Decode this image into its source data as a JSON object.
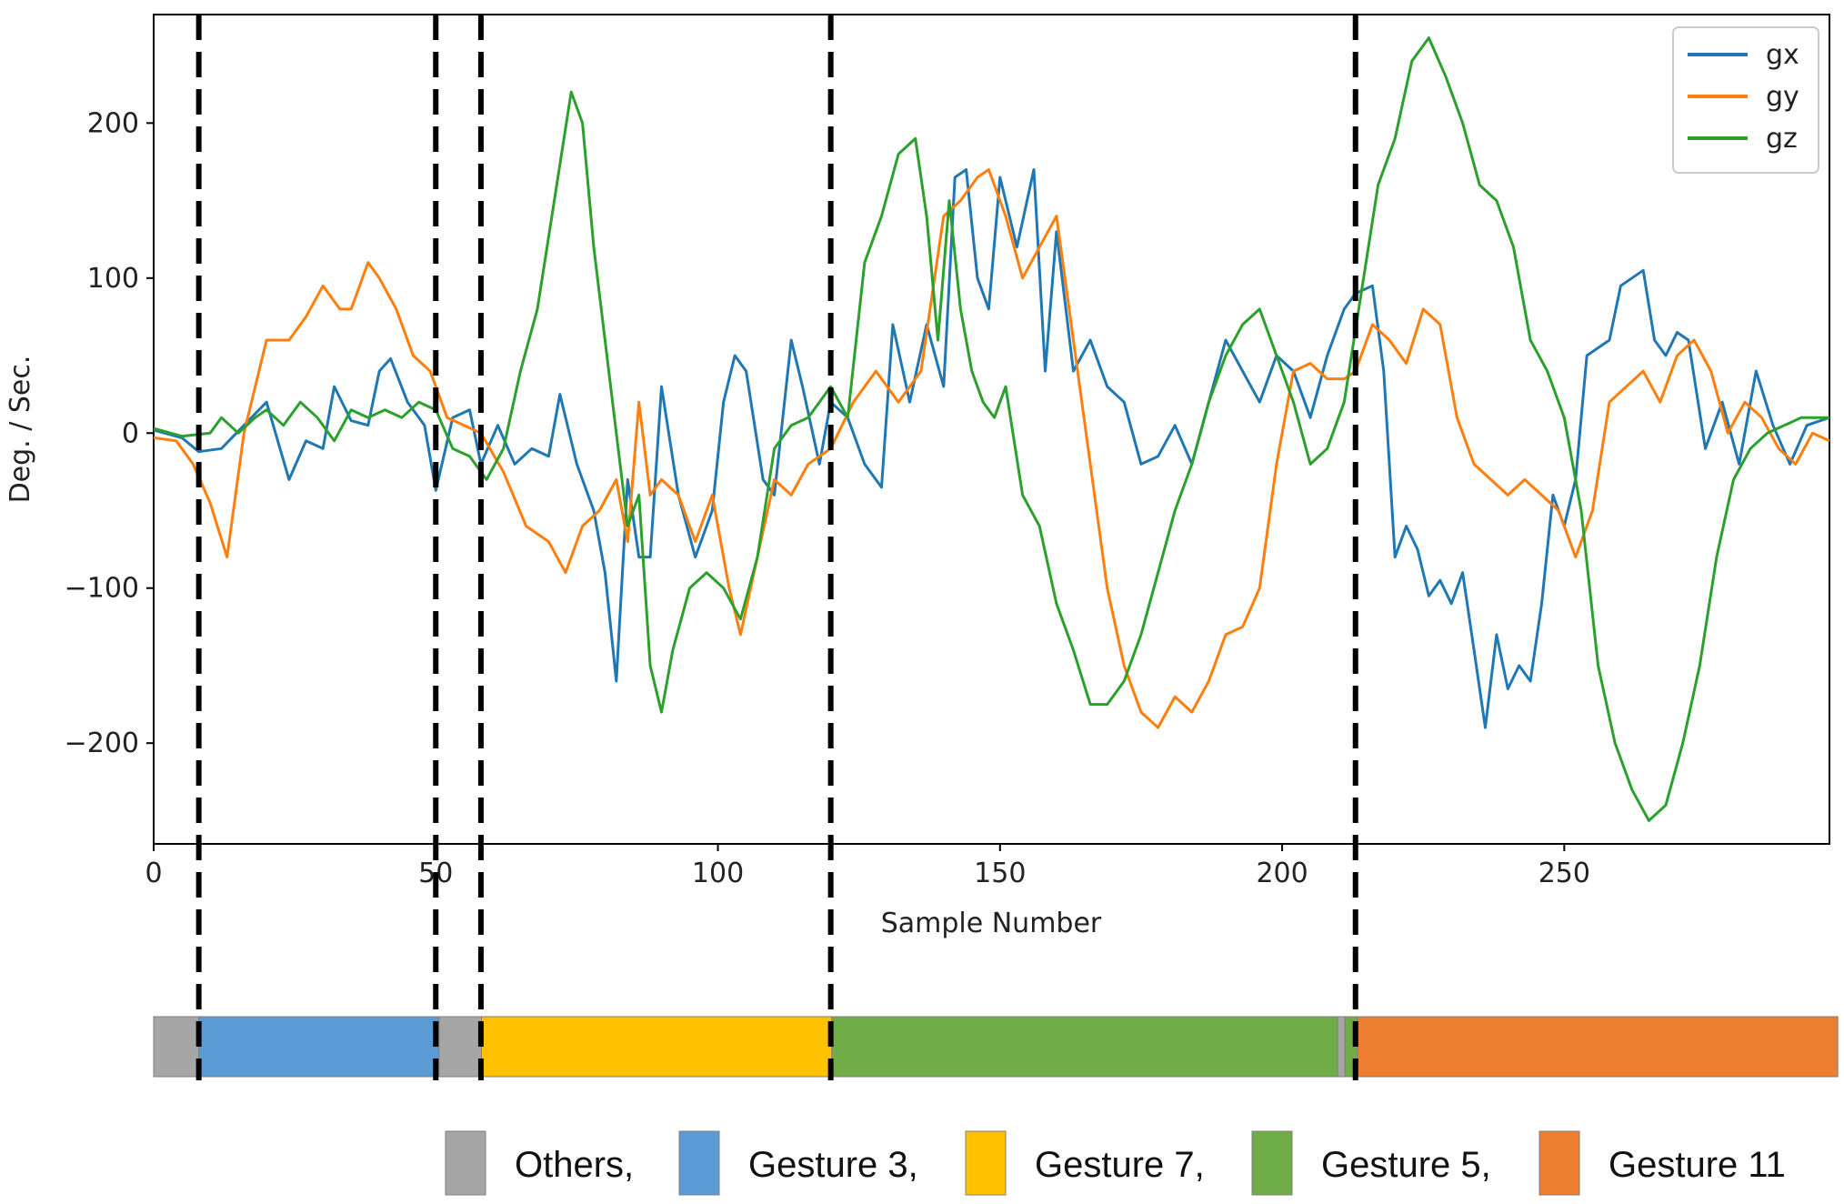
{
  "chart_data": {
    "type": "line",
    "xlabel": "Sample Number",
    "ylabel": "Deg. / Sec.",
    "xlim": [
      0,
      297
    ],
    "ylim": [
      -265,
      270
    ],
    "xticks": [
      0,
      50,
      100,
      150,
      200,
      250
    ],
    "xtick_labels": [
      "0",
      "50",
      "100",
      "150",
      "200",
      "250"
    ],
    "yticks": [
      200,
      100,
      0,
      -100,
      -200
    ],
    "ytick_labels": [
      "200",
      "100",
      "0",
      "−100",
      "−200"
    ],
    "legend_position": "top-right",
    "boundaries": [
      8,
      50,
      58,
      120,
      213
    ],
    "series": [
      {
        "name": "gx",
        "color": "#1f77b4",
        "x": [
          0,
          5,
          8,
          12,
          16,
          20,
          24,
          27,
          30,
          32,
          35,
          38,
          40,
          42,
          45,
          48,
          50,
          53,
          56,
          58,
          61,
          64,
          67,
          70,
          72,
          75,
          78,
          80,
          82,
          84,
          86,
          88,
          90,
          93,
          96,
          99,
          101,
          103,
          105,
          108,
          110,
          113,
          115,
          118,
          120,
          123,
          126,
          129,
          131,
          134,
          137,
          140,
          142,
          144,
          146,
          148,
          150,
          153,
          156,
          158,
          160,
          163,
          166,
          169,
          172,
          175,
          178,
          181,
          184,
          187,
          190,
          193,
          196,
          199,
          202,
          205,
          208,
          211,
          213,
          216,
          218,
          220,
          222,
          224,
          226,
          228,
          230,
          232,
          234,
          236,
          238,
          240,
          242,
          244,
          246,
          248,
          250,
          252,
          254,
          256,
          258,
          260,
          262,
          264,
          266,
          268,
          270,
          272,
          275,
          278,
          281,
          284,
          287,
          290,
          293,
          297
        ],
        "y": [
          2,
          -3,
          -12,
          -10,
          5,
          20,
          -30,
          -5,
          -10,
          30,
          8,
          5,
          40,
          48,
          20,
          5,
          -37,
          10,
          15,
          -20,
          5,
          -20,
          -10,
          -15,
          25,
          -20,
          -50,
          -90,
          -160,
          -30,
          -80,
          -80,
          30,
          -40,
          -80,
          -50,
          20,
          50,
          40,
          -30,
          -40,
          60,
          30,
          -20,
          20,
          10,
          -20,
          -35,
          70,
          20,
          70,
          30,
          165,
          170,
          100,
          80,
          165,
          120,
          170,
          40,
          130,
          40,
          60,
          30,
          20,
          -20,
          -15,
          5,
          -20,
          20,
          60,
          40,
          20,
          50,
          40,
          10,
          50,
          80,
          90,
          95,
          40,
          -80,
          -60,
          -75,
          -105,
          -95,
          -110,
          -90,
          -140,
          -190,
          -130,
          -165,
          -150,
          -160,
          -110,
          -40,
          -60,
          -30,
          50,
          55,
          60,
          95,
          100,
          105,
          60,
          50,
          65,
          60,
          -10,
          20,
          -20,
          40,
          5,
          -20,
          5,
          10
        ]
      },
      {
        "name": "gy",
        "color": "#ff7f0e",
        "x": [
          0,
          4,
          7,
          10,
          13,
          16,
          20,
          24,
          27,
          30,
          33,
          35,
          38,
          40,
          43,
          46,
          49,
          52,
          55,
          58,
          62,
          66,
          70,
          73,
          76,
          79,
          82,
          84,
          86,
          88,
          90,
          93,
          96,
          99,
          102,
          104,
          107,
          110,
          113,
          116,
          120,
          124,
          128,
          132,
          136,
          140,
          143,
          146,
          148,
          151,
          154,
          157,
          160,
          163,
          166,
          169,
          172,
          175,
          178,
          181,
          184,
          187,
          190,
          193,
          196,
          199,
          202,
          205,
          208,
          211,
          213,
          216,
          219,
          222,
          225,
          228,
          231,
          234,
          237,
          240,
          243,
          246,
          249,
          252,
          255,
          258,
          261,
          264,
          267,
          270,
          273,
          276,
          279,
          282,
          285,
          288,
          291,
          294,
          297
        ],
        "y": [
          -3,
          -5,
          -20,
          -45,
          -80,
          0,
          60,
          60,
          75,
          95,
          80,
          80,
          110,
          100,
          80,
          50,
          40,
          10,
          5,
          0,
          -25,
          -60,
          -70,
          -90,
          -60,
          -50,
          -30,
          -70,
          20,
          -40,
          -30,
          -40,
          -70,
          -40,
          -100,
          -130,
          -80,
          -30,
          -40,
          -20,
          -10,
          20,
          40,
          20,
          40,
          140,
          150,
          165,
          170,
          140,
          100,
          120,
          140,
          60,
          -20,
          -100,
          -150,
          -180,
          -190,
          -170,
          -180,
          -160,
          -130,
          -125,
          -100,
          -20,
          40,
          45,
          35,
          35,
          40,
          70,
          60,
          45,
          80,
          70,
          10,
          -20,
          -30,
          -40,
          -30,
          -40,
          -50,
          -80,
          -50,
          20,
          30,
          40,
          20,
          50,
          60,
          40,
          0,
          20,
          10,
          -10,
          -20,
          0,
          -5
        ]
      },
      {
        "name": "gz",
        "color": "#2ca02c",
        "x": [
          0,
          5,
          10,
          12,
          15,
          18,
          20,
          23,
          26,
          29,
          32,
          35,
          38,
          41,
          44,
          47,
          50,
          53,
          56,
          59,
          62,
          65,
          68,
          71,
          74,
          76,
          78,
          80,
          82,
          84,
          86,
          88,
          90,
          92,
          95,
          98,
          101,
          104,
          107,
          110,
          113,
          116,
          118,
          120,
          123,
          126,
          129,
          132,
          135,
          137,
          139,
          141,
          143,
          145,
          147,
          149,
          151,
          154,
          157,
          160,
          163,
          166,
          169,
          172,
          175,
          178,
          181,
          184,
          187,
          190,
          193,
          196,
          199,
          202,
          205,
          208,
          211,
          214,
          217,
          220,
          223,
          226,
          229,
          232,
          235,
          238,
          241,
          244,
          247,
          250,
          253,
          256,
          259,
          262,
          265,
          268,
          271,
          274,
          277,
          280,
          283,
          286,
          289,
          292,
          297
        ],
        "y": [
          3,
          -2,
          0,
          10,
          0,
          10,
          15,
          5,
          20,
          10,
          -5,
          15,
          10,
          15,
          10,
          20,
          15,
          -10,
          -15,
          -30,
          -10,
          40,
          80,
          150,
          220,
          200,
          120,
          60,
          0,
          -60,
          -40,
          -150,
          -180,
          -140,
          -100,
          -90,
          -100,
          -120,
          -80,
          -10,
          5,
          10,
          20,
          30,
          10,
          110,
          140,
          180,
          190,
          140,
          60,
          150,
          80,
          40,
          20,
          10,
          30,
          -40,
          -60,
          -110,
          -140,
          -175,
          -175,
          -160,
          -130,
          -90,
          -50,
          -20,
          20,
          50,
          70,
          80,
          50,
          20,
          -20,
          -10,
          20,
          90,
          160,
          190,
          240,
          255,
          230,
          200,
          160,
          150,
          120,
          60,
          40,
          10,
          -50,
          -150,
          -200,
          -230,
          -250,
          -240,
          -200,
          -150,
          -80,
          -30,
          -10,
          0,
          5,
          10,
          10
        ]
      }
    ]
  },
  "segment_bar": {
    "segments": [
      {
        "label": "Others",
        "start": 0,
        "end": 8,
        "color": "#a6a6a6"
      },
      {
        "label": "Gesture 3",
        "start": 8,
        "end": 50.5,
        "color": "#5b9bd5"
      },
      {
        "label": "Others",
        "start": 50.5,
        "end": 58,
        "color": "#a6a6a6"
      },
      {
        "label": "Gesture 7",
        "start": 58,
        "end": 120,
        "color": "#ffc000"
      },
      {
        "label": "Gesture 5",
        "start": 120,
        "end": 209.5,
        "color": "#70ad47"
      },
      {
        "label": "Others",
        "start": 209.5,
        "end": 210.8,
        "color": "#a6a6a6"
      },
      {
        "label": "Gesture 5",
        "start": 210.8,
        "end": 213,
        "color": "#70ad47"
      },
      {
        "label": "Gesture 11",
        "start": 213,
        "end": 298,
        "color": "#ed7d31"
      }
    ]
  },
  "segment_legend": [
    {
      "label": "Others,",
      "color": "#a6a6a6"
    },
    {
      "label": "Gesture 3,",
      "color": "#5b9bd5"
    },
    {
      "label": "Gesture 7,",
      "color": "#ffc000"
    },
    {
      "label": "Gesture 5,",
      "color": "#70ad47"
    },
    {
      "label": "Gesture 11",
      "color": "#ed7d31"
    }
  ]
}
